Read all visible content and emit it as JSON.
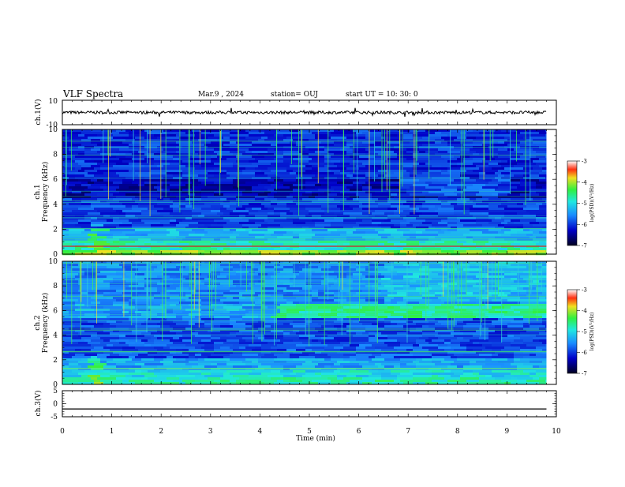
{
  "header": {
    "title": "VLF Spectra",
    "date": "Mar.9 , 2024",
    "station": "station= OUJ",
    "start": "start UT = 10: 30: 0"
  },
  "chart_data": [
    {
      "id": "ch1-waveform",
      "type": "line",
      "ylabel": "ch.1(V)",
      "ylim": [
        -10,
        10
      ],
      "yticks": [
        "10",
        "-10"
      ],
      "xlim": [
        0,
        10
      ],
      "baseline": 0,
      "style": "noisy trace"
    },
    {
      "id": "ch1-spectrogram",
      "type": "heatmap",
      "ylabel": "ch.1\nFrequency (kHz)",
      "ylim": [
        0,
        10
      ],
      "yticks": [
        "0",
        "2",
        "4",
        "6",
        "8",
        "10"
      ],
      "xlim": [
        0,
        10
      ],
      "colorbar": {
        "label": "log(PSD)(V²/Hz)",
        "range": [
          -7,
          -3
        ],
        "ticks": [
          "-3",
          "-4",
          "-5",
          "-6",
          "-7"
        ]
      },
      "colors": {
        "low": "#000030",
        "mid": "#1f5cff",
        "high": "#3ff070",
        "peak": "#ff2000"
      }
    },
    {
      "id": "ch2-spectrogram",
      "type": "heatmap",
      "ylabel": "ch.2\nFrequency (kHz)",
      "ylim": [
        0,
        10
      ],
      "yticks": [
        "0",
        "2",
        "4",
        "6",
        "8",
        "10"
      ],
      "xlim": [
        0,
        10
      ],
      "colorbar": {
        "label": "log(PSD)(V²/Hz)",
        "range": [
          -7,
          -3
        ],
        "ticks": [
          "-3",
          "-4",
          "-5",
          "-6",
          "-7"
        ]
      },
      "colors": {
        "low": "#000030",
        "mid": "#1f5cff",
        "high": "#3ff070",
        "peak": "#ff2000"
      }
    },
    {
      "id": "ch3-waveform",
      "type": "line",
      "ylabel": "ch.3(V)",
      "ylim": [
        -5,
        5
      ],
      "yticks": [
        "5",
        "0",
        "-5"
      ],
      "xlim": [
        0,
        10
      ],
      "baseline": -2,
      "style": "flat trace"
    }
  ],
  "xaxis": {
    "label": "Time (min)",
    "range": [
      0,
      10
    ],
    "ticks": [
      "0",
      "1",
      "2",
      "3",
      "4",
      "5",
      "6",
      "7",
      "8",
      "9",
      "10"
    ]
  }
}
